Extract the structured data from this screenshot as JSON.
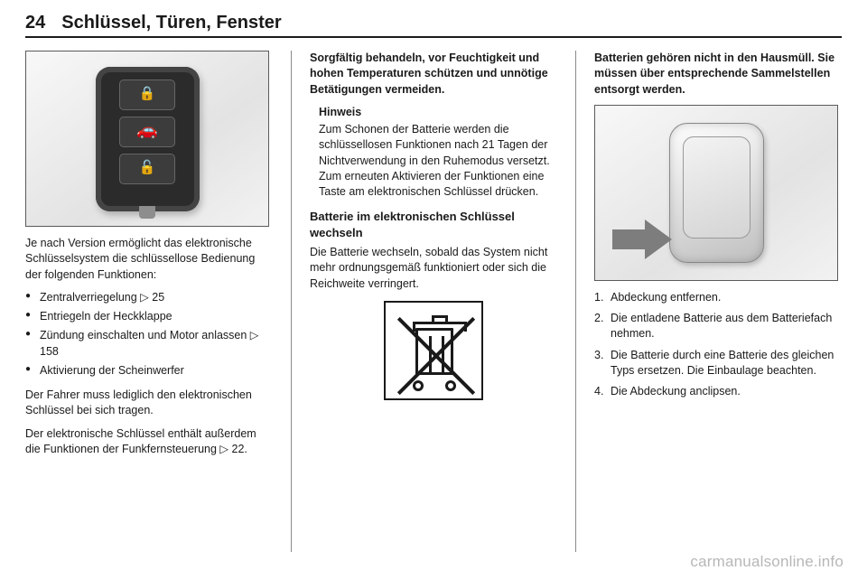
{
  "header": {
    "page_number": "24",
    "chapter_title": "Schlüssel, Türen, Fenster"
  },
  "col1": {
    "intro": "Je nach Version ermöglicht das elektronische Schlüsselsystem die schlüssellose Bedienung der folgenden Funktionen:",
    "bullets": [
      {
        "text": "Zentralverriegelung ",
        "ref": "▷ 25"
      },
      {
        "text": "Entriegeln der Heckklappe",
        "ref": ""
      },
      {
        "text": "Zündung einschalten und Motor anlassen ",
        "ref": "▷ 158"
      },
      {
        "text": "Aktivierung der Scheinwerfer",
        "ref": ""
      }
    ],
    "para2": "Der Fahrer muss lediglich den elektronischen Schlüssel bei sich tragen.",
    "para3": "Der elektronische Schlüssel enthält außerdem die Funktionen der Funkfernsteuerung ▷ 22."
  },
  "col2": {
    "top_bold": "Sorgfältig behandeln, vor Feuchtigkeit und hohen Temperaturen schützen und unnötige Betätigungen vermeiden.",
    "hinweis_title": "Hinweis",
    "hinweis_body": "Zum Schonen der Batterie werden die schlüssellosen Funktionen nach 21 Tagen der Nichtverwendung in den Ruhemodus versetzt. Zum erneuten Aktivieren der Funktionen eine Taste am elektronischen Schlüssel drücken.",
    "sub_heading": "Batterie im elektronischen Schlüssel wechseln",
    "sub_body": "Die Batterie wechseln, sobald das System nicht mehr ordnungsgemäß funktioniert oder sich die Reichweite verringert."
  },
  "col3": {
    "top_bold": "Batterien gehören nicht in den Hausmüll. Sie müssen über entsprechende Sammelstellen entsorgt werden.",
    "steps": [
      "Abdeckung entfernen.",
      "Die entladene Batterie aus dem Batteriefach nehmen.",
      "Die Batterie durch eine Batterie des gleichen Typs ersetzen. Die Einbaulage beachten.",
      "Die Abdeckung anclipsen."
    ]
  },
  "watermark": "carmanualsonline.info",
  "icons": {
    "lock": "🔒",
    "unlock": "🔓",
    "tailgate": "🚗"
  }
}
